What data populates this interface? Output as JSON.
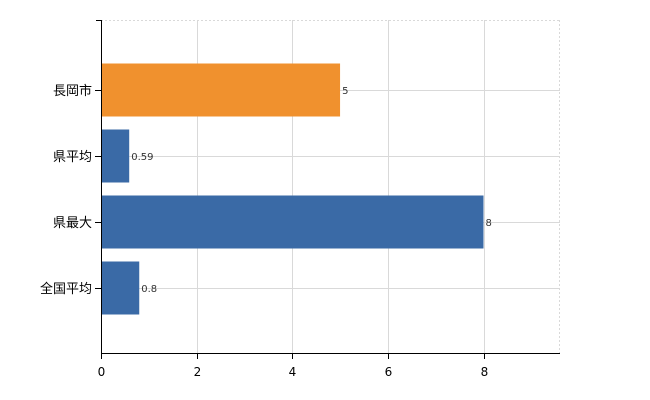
{
  "chart_data": {
    "type": "bar",
    "orientation": "horizontal",
    "categories": [
      "長岡市",
      "県平均",
      "県最大",
      "全国平均"
    ],
    "values": [
      5,
      0.59,
      8,
      0.8
    ],
    "value_labels": [
      "5",
      "0.59",
      "8",
      "0.8"
    ],
    "bar_colors": [
      "#f0912e",
      "#3a6aa6",
      "#3a6aa6",
      "#3a6aa6"
    ],
    "xlim": [
      0,
      9.6
    ],
    "xticks": [
      0,
      2,
      4,
      6,
      8
    ],
    "xtick_labels": [
      "0",
      "2",
      "4",
      "6",
      "8"
    ],
    "grid": true,
    "legend": "none"
  }
}
